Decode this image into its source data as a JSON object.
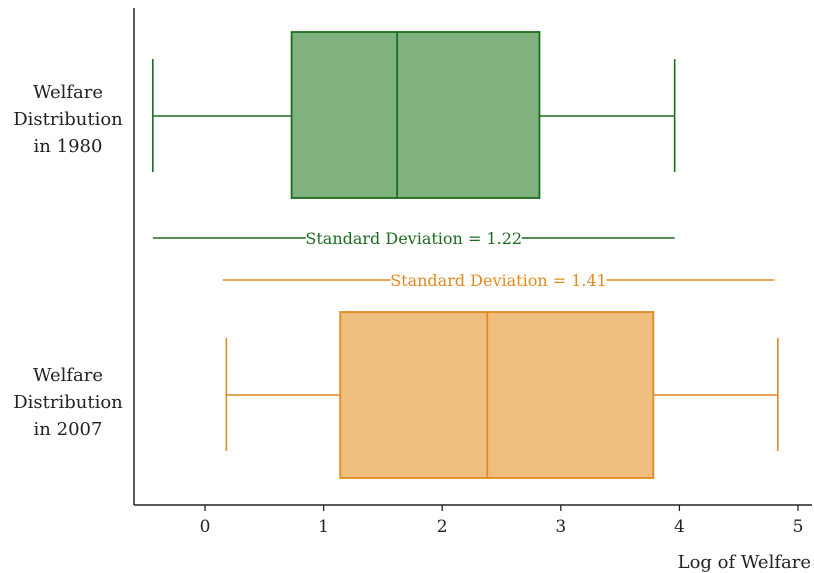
{
  "chart_data": {
    "type": "boxplot",
    "xlabel": "Log of Welfare",
    "xlim": [
      -0.6,
      5.15
    ],
    "xticks": [
      0,
      1,
      2,
      3,
      4,
      5
    ],
    "xtick_labels": [
      "0",
      "1",
      "2",
      "3",
      "4",
      "5"
    ],
    "grid": false,
    "series": [
      {
        "label_lines": [
          "Welfare",
          "Distribution",
          "in 1980"
        ],
        "color": "#1e6b1e",
        "fill": "#7fb27f",
        "whisker_low": -0.44,
        "q1": 0.73,
        "median": 1.62,
        "q3": 2.82,
        "whisker_high": 3.96,
        "sd_label": "Standard Deviation = 1.22",
        "sd_range": [
          -0.44,
          3.96
        ]
      },
      {
        "label_lines": [
          "Welfare",
          "Distribution",
          "in 2007"
        ],
        "color": "#e08a1e",
        "fill": "#f0bf80",
        "whisker_low": 0.18,
        "q1": 1.14,
        "median": 2.38,
        "q3": 3.78,
        "whisker_high": 4.83,
        "sd_label": "Standard Deviation = 1.41",
        "sd_range": [
          0.15,
          4.8
        ]
      }
    ]
  }
}
